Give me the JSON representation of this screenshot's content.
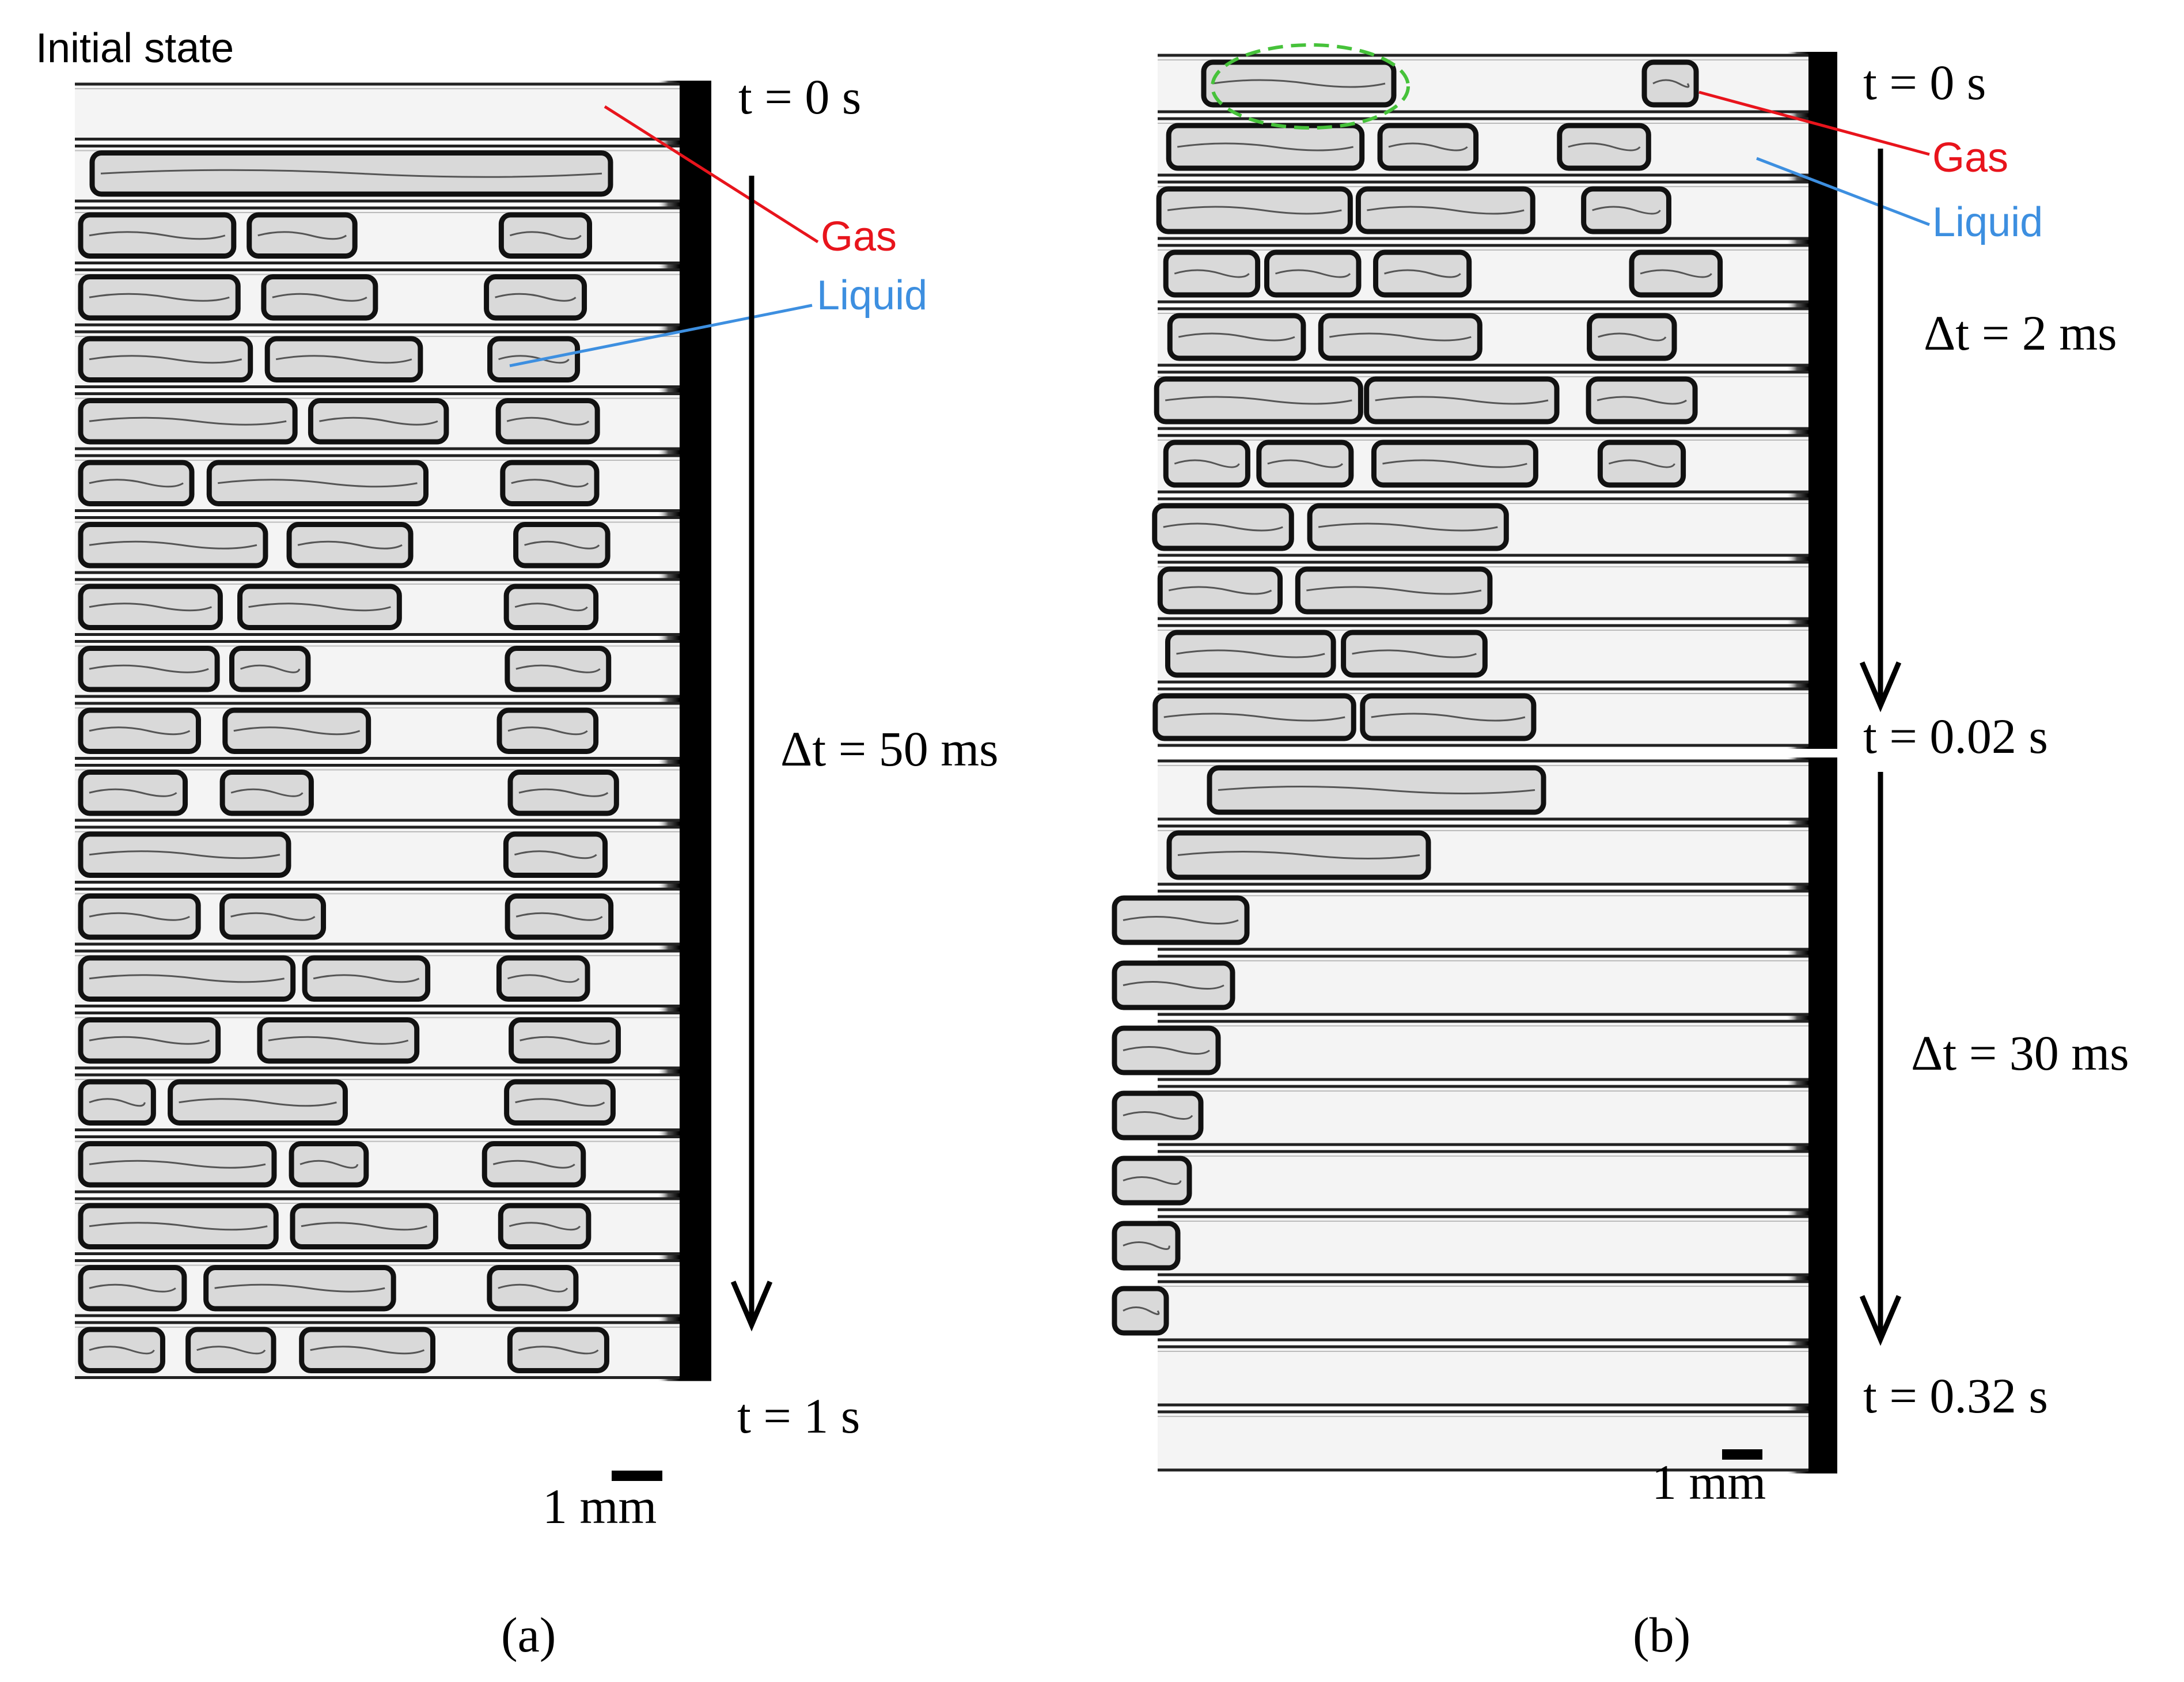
{
  "panel_a": {
    "initial_state": "Initial state",
    "t_start": "t = 0 s",
    "t_end": "t = 1 s",
    "delta_t": "Δt = 50 ms",
    "gas": "Gas",
    "liquid": "Liquid",
    "scale_bar": "1 mm",
    "caption": "(a)",
    "frame_count": 21
  },
  "panel_b": {
    "t_start": "t = 0 s",
    "t_mid": "t = 0.02 s",
    "t_end": "t = 0.32 s",
    "delta_t_1": "Δt = 2 ms",
    "delta_t_2": "Δt = 30 ms",
    "gas": "Gas",
    "liquid": "Liquid",
    "scale_bar": "1 mm",
    "caption": "(b)",
    "frame_count_top": 11,
    "frame_count_bottom": 11
  },
  "colors": {
    "gas": "#e8141c",
    "liquid": "#3d8fe0",
    "highlight": "#46c23a",
    "tube": "#1a1a1a"
  }
}
